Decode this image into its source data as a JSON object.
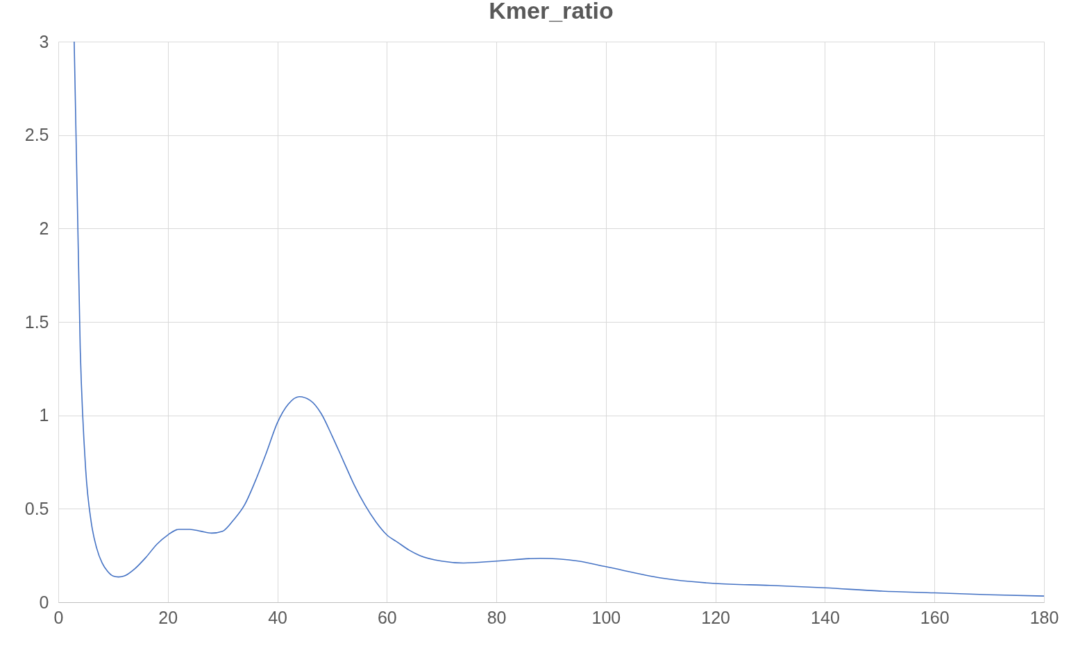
{
  "chart_data": {
    "type": "line",
    "title": "Kmer_ratio",
    "x": [
      2.9,
      4,
      5,
      6,
      7,
      8,
      9,
      10,
      11,
      12,
      14,
      16,
      18,
      20,
      22,
      24,
      26,
      28,
      30,
      32,
      34,
      36,
      38,
      40,
      42,
      44,
      46,
      48,
      50,
      52,
      54,
      56,
      58,
      60,
      62,
      64,
      66,
      70,
      74,
      80,
      88,
      95,
      100,
      110,
      120,
      130,
      140,
      150,
      160,
      170,
      180
    ],
    "series": [
      {
        "color": "#4472c4",
        "values": [
          3,
          1.36,
          0.71,
          0.43,
          0.29,
          0.21,
          0.165,
          0.14,
          0.135,
          0.14,
          0.18,
          0.24,
          0.31,
          0.36,
          0.39,
          0.39,
          0.38,
          0.37,
          0.38,
          0.44,
          0.52,
          0.65,
          0.8,
          0.96,
          1.06,
          1.1,
          1.08,
          1.01,
          0.89,
          0.76,
          0.63,
          0.52,
          0.43,
          0.36,
          0.32,
          0.28,
          0.25,
          0.22,
          0.21,
          0.22,
          0.235,
          0.22,
          0.19,
          0.13,
          0.1,
          0.09,
          0.077,
          0.06,
          0.05,
          0.04,
          0.033
        ]
      }
    ],
    "xlim": [
      0,
      180
    ],
    "xticks": [
      0,
      20,
      40,
      60,
      80,
      100,
      120,
      140,
      160,
      180
    ],
    "ylim": [
      0,
      3
    ],
    "yticks": [
      0,
      0.5,
      1,
      1.5,
      2,
      2.5,
      3
    ],
    "grid": true
  }
}
